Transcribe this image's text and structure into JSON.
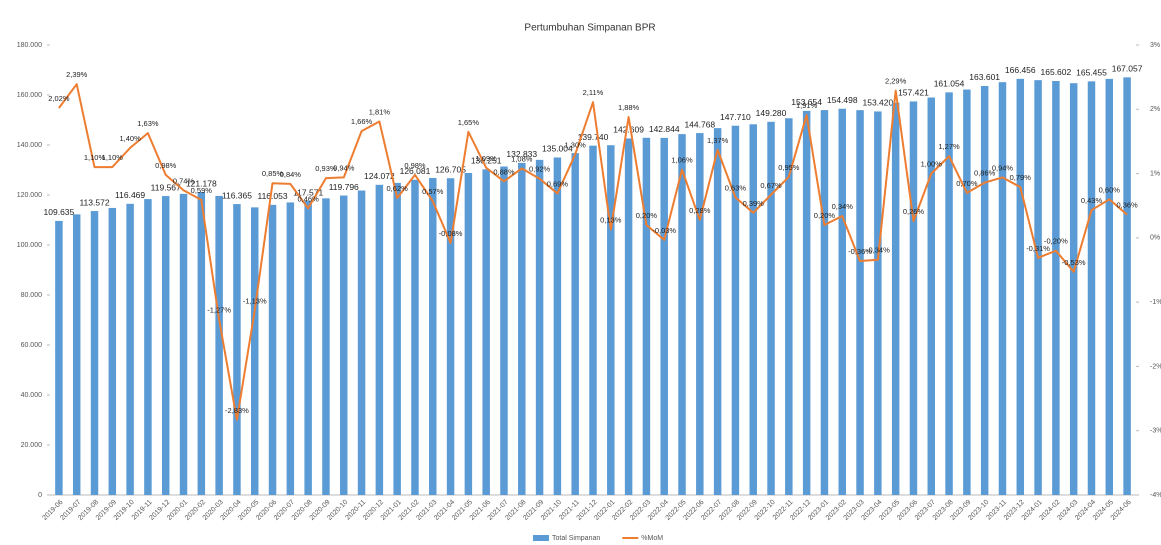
{
  "chart_data": {
    "type": "bar",
    "title": "Pertumbuhan Simpanan BPR",
    "categories": [
      "2019-06",
      "2019-07",
      "2019-08",
      "2019-09",
      "2019-10",
      "2019-11",
      "2019-12",
      "2020-01",
      "2020-02",
      "2020-03",
      "2020-04",
      "2020-05",
      "2020-06",
      "2020-07",
      "2020-08",
      "2020-09",
      "2020-10",
      "2020-11",
      "2020-12",
      "2021-01",
      "2021-02",
      "2021-03",
      "2021-04",
      "2021-05",
      "2021-06",
      "2021-07",
      "2021-08",
      "2021-09",
      "2021-10",
      "2021-11",
      "2021-12",
      "2022-01",
      "2022-02",
      "2022-03",
      "2022-04",
      "2022-05",
      "2022-06",
      "2022-07",
      "2022-08",
      "2022-09",
      "2022-10",
      "2022-11",
      "2022-12",
      "2023-01",
      "2023-02",
      "2023-03",
      "2023-04",
      "2023-05",
      "2023-06",
      "2023-07",
      "2023-08",
      "2023-09",
      "2023-10",
      "2023-11",
      "2023-12",
      "2024-01",
      "2024-02",
      "2024-03",
      "2024-04",
      "2024-05",
      "2024-06"
    ],
    "series": [
      {
        "name": "Total Simpanan",
        "color": "#5b9bd5",
        "values": [
          109635,
          112255,
          113572,
          114821,
          116469,
          118367,
          119567,
          120452,
          121178,
          119639,
          116365,
          115050,
          116053,
          117028,
          117571,
          118664,
          119796,
          121785,
          124072,
          124841,
          126081,
          126800,
          126705,
          128796,
          130251,
          131397,
          132833,
          134055,
          135004,
          136759,
          139740,
          139922,
          142609,
          142894,
          142844,
          144358,
          144768,
          146751,
          147710,
          148286,
          149280,
          150698,
          153654,
          153961,
          154498,
          153942,
          153420,
          156933,
          157421,
          158995,
          161054,
          162181,
          163601,
          165139,
          166456,
          165940,
          165602,
          164724,
          165455,
          166448,
          167057
        ],
        "value_labels": [
          "109.635",
          null,
          "113.572",
          null,
          "116.469",
          null,
          "119.567",
          null,
          "121.178",
          null,
          "116.365",
          null,
          "116.053",
          null,
          "117.571",
          null,
          "119.796",
          null,
          "124.072",
          null,
          "126.081",
          null,
          "126.705",
          null,
          "130.251",
          null,
          "132.833",
          null,
          "135.004",
          null,
          "139.740",
          null,
          "142.609",
          null,
          "142.844",
          null,
          "144.768",
          null,
          "147.710",
          null,
          "149.280",
          null,
          "153.654",
          null,
          "154.498",
          null,
          "153.420",
          null,
          "157.421",
          null,
          "161.054",
          null,
          "163.601",
          null,
          "166.456",
          null,
          "165.602",
          null,
          "165.455",
          null,
          "167.057"
        ]
      },
      {
        "name": "%MoM",
        "color": "#ed7d31",
        "type": "line",
        "axis": "y2",
        "values": [
          2.02,
          2.39,
          1.1,
          1.1,
          1.4,
          1.63,
          0.98,
          0.74,
          0.59,
          -1.27,
          -2.83,
          -1.13,
          0.85,
          0.84,
          0.46,
          0.93,
          0.94,
          1.66,
          1.81,
          0.62,
          0.98,
          0.57,
          -0.08,
          1.65,
          1.09,
          0.88,
          1.08,
          0.92,
          0.69,
          1.3,
          2.11,
          0.13,
          1.88,
          0.2,
          -0.03,
          1.06,
          0.28,
          1.37,
          0.63,
          0.39,
          0.67,
          0.95,
          1.91,
          0.2,
          0.34,
          -0.36,
          -0.34,
          2.29,
          0.26,
          1.0,
          1.27,
          0.7,
          0.86,
          0.94,
          0.79,
          -0.31,
          -0.2,
          -0.53,
          0.43,
          0.6,
          0.36
        ],
        "value_labels": [
          "2,02%",
          "2,39%",
          "1,10%",
          "1,10%",
          "1,40%",
          "1,63%",
          "0,98%",
          "0,74%",
          "0,59%",
          "-1,27%",
          "-2,83%",
          "-1,13%",
          "0,85%",
          "0,84%",
          "0,46%",
          "0,93%",
          "0,94%",
          "1,66%",
          "1,81%",
          "0,62%",
          "0,98%",
          "0,57%",
          "-0,08%",
          "1,65%",
          "1,09%",
          "0,88%",
          "1,08%",
          "0,92%",
          "0,69%",
          "1,30%",
          "2,11%",
          "0,13%",
          "1,88%",
          "0,20%",
          "-0,03%",
          "1,06%",
          "0,28%",
          "1,37%",
          "0,63%",
          "0,39%",
          "0,67%",
          "0,95%",
          "1,91%",
          "0,20%",
          "0,34%",
          "-0,36%",
          "-0,34%",
          "2,29%",
          "0,26%",
          "1,00%",
          "1,27%",
          "0,70%",
          "0,86%",
          "0,94%",
          "0,79%",
          "-0,31%",
          "-0,20%",
          "-0,53%",
          "0,43%",
          "0,60%",
          "0,36%"
        ]
      }
    ],
    "ylim": [
      0,
      180000
    ],
    "yticks": [
      0,
      {
        "value": 20000,
        "label": "20.000"
      },
      {
        "value": 40000,
        "label": "40.000"
      },
      {
        "value": 60000,
        "label": "60.000"
      },
      {
        "value": 80000,
        "label": "80.000"
      },
      {
        "value": 100000,
        "label": "100.000"
      },
      {
        "value": 120000,
        "label": "120.000"
      },
      {
        "value": 140000,
        "label": "140.000"
      },
      {
        "value": 160000,
        "label": "160.000"
      },
      {
        "value": 180000,
        "label": "180.000"
      }
    ],
    "y2lim": [
      -4,
      3
    ],
    "y2ticks": [
      {
        "value": -4,
        "label": "-4%"
      },
      {
        "value": -3,
        "label": "-3%"
      },
      {
        "value": -2,
        "label": "-2%"
      },
      {
        "value": -1,
        "label": "-1%"
      },
      {
        "value": 0,
        "label": "0%"
      },
      {
        "value": 1,
        "label": "1%"
      },
      {
        "value": 2,
        "label": "2%"
      },
      {
        "value": 3,
        "label": "3%"
      }
    ],
    "legend": "bottom"
  }
}
